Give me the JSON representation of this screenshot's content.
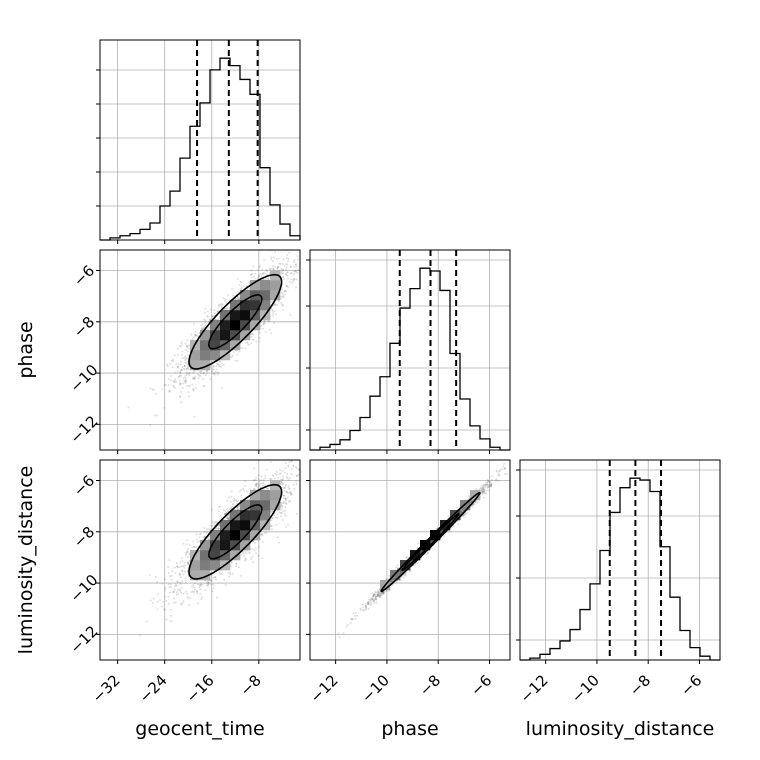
{
  "chart_data": {
    "type": "corner",
    "grid": true,
    "parameters": [
      "geocent_time",
      "phase",
      "luminosity_distance"
    ],
    "axis_labels": {
      "x": [
        "geocent_time",
        "phase",
        "luminosity_distance"
      ],
      "y": [
        "phase",
        "luminosity_distance"
      ]
    },
    "ranges": {
      "geocent_time": [
        -35,
        -1
      ],
      "phase": [
        -13,
        -5.2
      ],
      "luminosity_distance": [
        -13,
        -5.2
      ]
    },
    "ticks": {
      "geocent_time": [
        -32,
        -24,
        -16,
        -8
      ],
      "phase": [
        -12,
        -10,
        -8,
        -6
      ],
      "luminosity_distance": [
        -12,
        -10,
        -8,
        -6
      ]
    },
    "tick_labels": {
      "geocent_time": [
        "−32",
        "−24",
        "−16",
        "−8"
      ],
      "phase": [
        "−12",
        "−10",
        "−8",
        "−6"
      ],
      "luminosity_distance": [
        "−12",
        "−10",
        "−8",
        "−6"
      ]
    },
    "quantiles": {
      "geocent_time": [
        -18.5,
        -13.1,
        -8.2
      ],
      "phase": [
        -9.5,
        -8.3,
        -7.3
      ],
      "luminosity_distance": [
        -9.5,
        -8.5,
        -7.5
      ]
    },
    "histograms": {
      "geocent_time": {
        "edges": [
          -35,
          -33.3,
          -31.6,
          -29.9,
          -28.2,
          -26.5,
          -24.8,
          -23.1,
          -21.4,
          -19.7,
          -18,
          -16.3,
          -14.6,
          -12.9,
          -11.2,
          -9.5,
          -7.8,
          -6.1,
          -4.4,
          -2.7,
          -1
        ],
        "counts": [
          0,
          2,
          4,
          6,
          10,
          16,
          32,
          46,
          77,
          107,
          129,
          160,
          171,
          164,
          151,
          137,
          68,
          33,
          15,
          4
        ]
      },
      "phase": {
        "edges": [
          -13,
          -12.61,
          -12.22,
          -11.83,
          -11.44,
          -11.05,
          -10.66,
          -10.27,
          -9.88,
          -9.49,
          -9.1,
          -8.71,
          -8.32,
          -7.93,
          -7.54,
          -7.15,
          -6.76,
          -6.37,
          -5.98,
          -5.59,
          -5.2
        ],
        "counts": [
          0,
          3,
          6,
          11,
          21,
          35,
          58,
          79,
          115,
          153,
          174,
          196,
          193,
          172,
          104,
          55,
          26,
          12,
          3,
          0
        ]
      },
      "luminosity_distance": {
        "edges": [
          -13,
          -12.61,
          -12.22,
          -11.83,
          -11.44,
          -11.05,
          -10.66,
          -10.27,
          -9.88,
          -9.49,
          -9.1,
          -8.71,
          -8.32,
          -7.93,
          -7.54,
          -7.15,
          -6.76,
          -6.37,
          -5.98,
          -5.59,
          -5.2
        ],
        "counts": [
          0,
          2,
          6,
          12,
          20,
          32,
          53,
          80,
          115,
          155,
          181,
          191,
          189,
          177,
          119,
          66,
          31,
          13,
          4,
          0
        ]
      }
    },
    "correlations": [
      {
        "x": "geocent_time",
        "y": "phase",
        "center": [
          -12,
          -8
        ],
        "sigma_x": 4.5,
        "sigma_y": 1.05,
        "rho": 0.85
      },
      {
        "x": "geocent_time",
        "y": "luminosity_distance",
        "center": [
          -12,
          -8
        ],
        "sigma_x": 4.5,
        "sigma_y": 1.05,
        "rho": 0.85
      },
      {
        "x": "phase",
        "y": "luminosity_distance",
        "center": [
          -8.3,
          -8.4
        ],
        "sigma_x": 1.1,
        "sigma_y": 1.1,
        "rho": 0.995
      }
    ]
  }
}
